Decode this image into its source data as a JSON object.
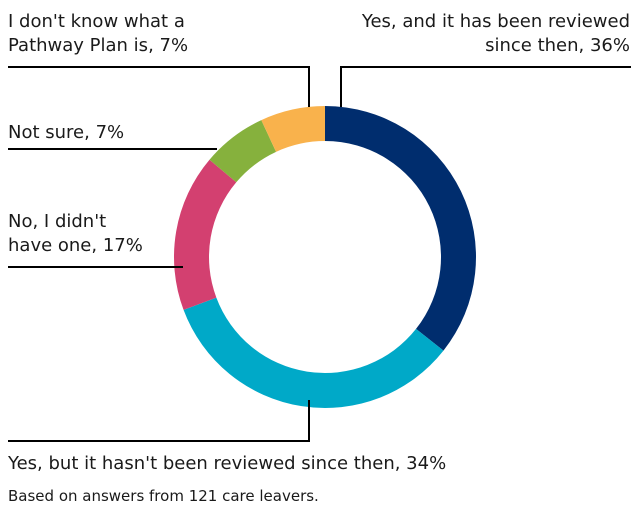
{
  "chart_data": {
    "type": "pie",
    "donut": true,
    "slices": [
      {
        "label": "Yes, and it has been reviewed since then",
        "value": 36,
        "color": "#002d6e",
        "label_lines": [
          "Yes, and it has been reviewed",
          "since then, 36%"
        ]
      },
      {
        "label": "Yes, but it hasn't been reviewed since then",
        "value": 34,
        "color": "#00a9c8",
        "label_lines": [
          "Yes, but it hasn't been reviewed since then, 34%"
        ]
      },
      {
        "label": "No, I didn't have one",
        "value": 17,
        "color": "#d34070",
        "label_lines": [
          "No, I didn't",
          "have one, 17%"
        ]
      },
      {
        "label": "Not sure",
        "value": 7,
        "color": "#86b13d",
        "label_lines": [
          "Not sure, 7%"
        ]
      },
      {
        "label": "I don't know what a Pathway Plan is",
        "value": 7,
        "color": "#f9b24c",
        "label_lines": [
          "I don't know what a",
          "Pathway Plan is, 7%"
        ]
      }
    ],
    "note": "Based on answers from 121 care leavers."
  }
}
